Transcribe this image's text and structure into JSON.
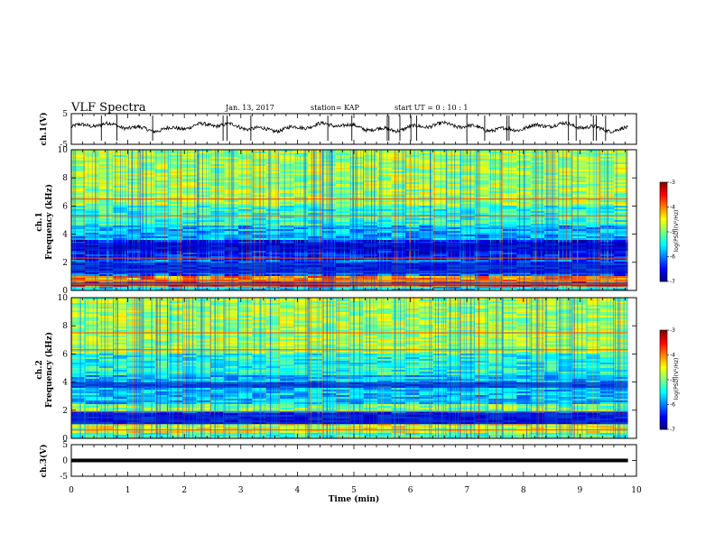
{
  "header": {
    "title": "VLF Spectra",
    "date": "Jan. 13, 2017",
    "station": "station= KAP",
    "start_time": "start  UT =   0 : 10 : 1"
  },
  "chart_data": [
    {
      "type": "line",
      "ylabel": "ch.1(V)",
      "ylim": [
        -5,
        5
      ],
      "yticks": [
        "5",
        "-5"
      ],
      "x_range_min": [
        0,
        9.85
      ],
      "baseline_v": 0.6,
      "amplitude_v": 1.4
    },
    {
      "type": "heatmap",
      "ylabel_top": "ch.1",
      "ylabel": "Frequency  (kHz)",
      "ylim": [
        0,
        10
      ],
      "yticks": [
        "0",
        "2",
        "4",
        "6",
        "8",
        "10"
      ],
      "x_range_min": [
        0,
        9.85
      ],
      "quiet_bands_khz": [
        [
          2.8,
          3.4
        ],
        [
          1.2,
          2.0
        ],
        [
          0.3,
          0.6
        ]
      ],
      "hot_bands_khz": [
        0.7,
        0.45,
        2.3,
        5.3,
        6.5
      ],
      "colorbar": {
        "label": "log(PSD)(V²/Hz)",
        "ticks": [
          "-3",
          "-4",
          "-5",
          "-6",
          "-7"
        ],
        "range": [
          -7,
          -3
        ]
      }
    },
    {
      "type": "heatmap",
      "ylabel_top": "ch.2",
      "ylabel": "Frequency  (kHz)",
      "ylim": [
        0,
        10
      ],
      "yticks": [
        "0",
        "2",
        "4",
        "6",
        "8",
        "10"
      ],
      "x_range_min": [
        0,
        9.85
      ],
      "quiet_bands_khz": [
        [
          1.0,
          1.8
        ],
        [
          3.6,
          4.0
        ]
      ],
      "hot_bands_khz": [
        1.9,
        0.6,
        6.3,
        7.5
      ],
      "colorbar": {
        "label": "log(PSD)(V²/Hz)",
        "ticks": [
          "-3",
          "-4",
          "-5",
          "-6",
          "-7"
        ],
        "range": [
          -7,
          -3
        ]
      }
    },
    {
      "type": "line",
      "ylabel": "ch.3(V)",
      "ylim": [
        -5,
        5
      ],
      "yticks": [
        "5",
        "0",
        "-5"
      ],
      "x_range_min": [
        0,
        9.85
      ],
      "constant_v": 0
    }
  ],
  "xaxis": {
    "label": "Time  (min)",
    "ticks": [
      "0",
      "1",
      "2",
      "3",
      "4",
      "5",
      "6",
      "7",
      "8",
      "9",
      "10"
    ],
    "range": [
      0,
      10
    ]
  },
  "colors": {
    "background": "#ffffff",
    "trace": "#000000"
  }
}
